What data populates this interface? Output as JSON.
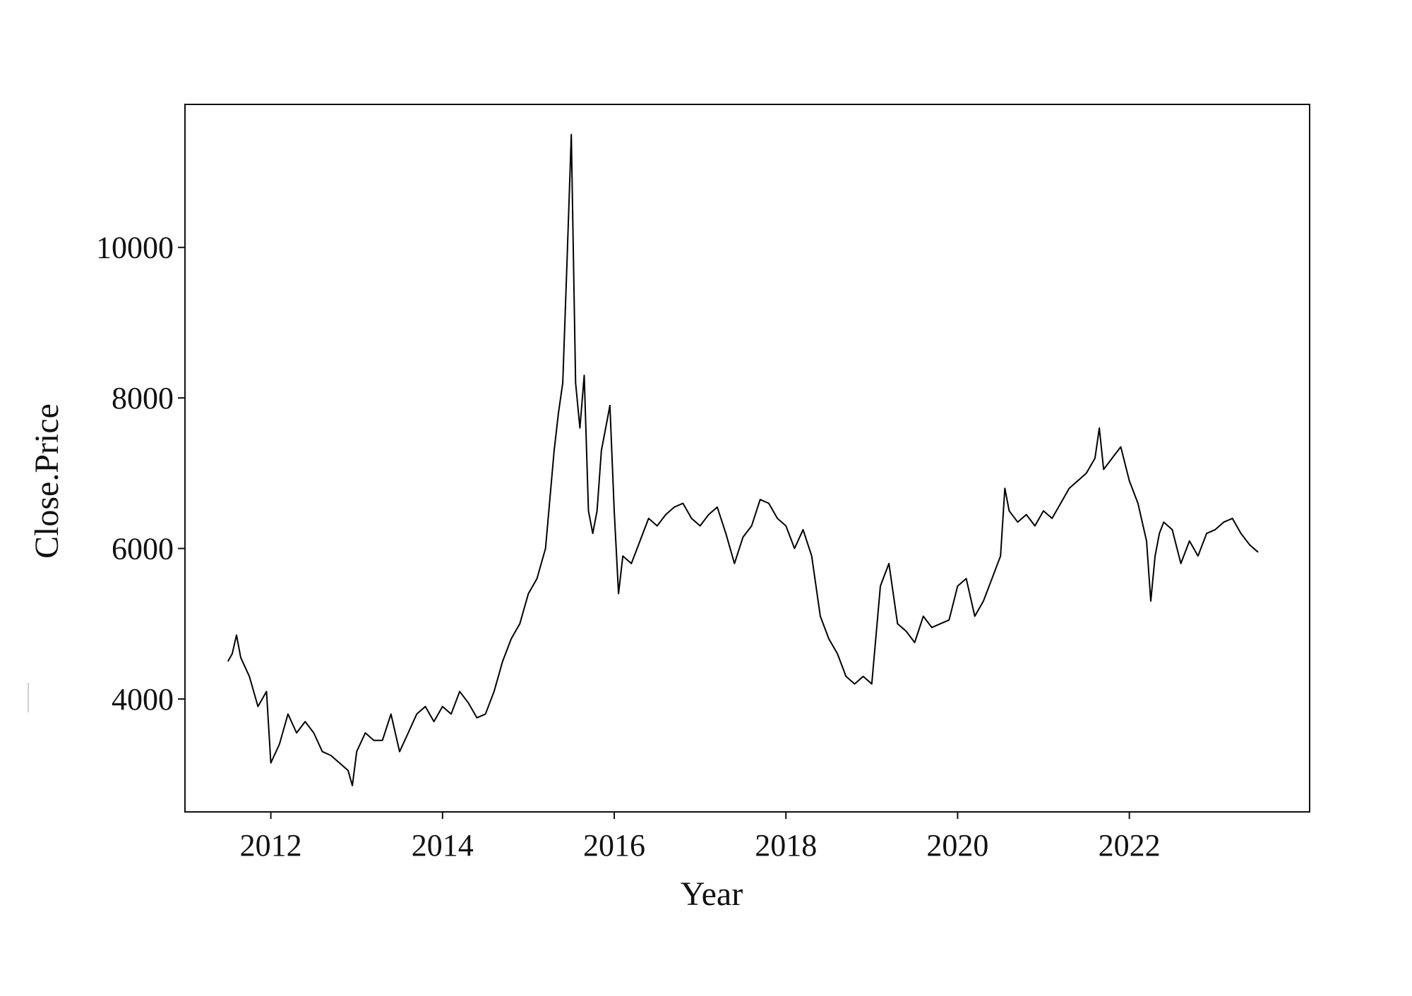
{
  "chart_data": {
    "type": "line",
    "title": "",
    "xlabel": "Year",
    "ylabel": "Close.Price",
    "xlim": [
      2011.0,
      2024.1
    ],
    "ylim": [
      2500,
      11900
    ],
    "x_ticks": [
      2012,
      2014,
      2016,
      2018,
      2020,
      2022
    ],
    "x_tick_labels": [
      "2012",
      "2014",
      "2016",
      "2018",
      "2020",
      "2022"
    ],
    "y_ticks": [
      4000,
      6000,
      8000,
      10000
    ],
    "y_tick_labels": [
      "4000",
      "6000",
      "8000",
      "10000"
    ],
    "grid": false,
    "legend": "none",
    "line_color": "#000000",
    "series": [
      {
        "x": [
          2011.5,
          2011.55,
          2011.6,
          2011.65,
          2011.75,
          2011.85,
          2011.95,
          2012.0,
          2012.1,
          2012.2,
          2012.3,
          2012.4,
          2012.5,
          2012.6,
          2012.7,
          2012.8,
          2012.9,
          2012.95,
          2013.0,
          2013.1,
          2013.2,
          2013.3,
          2013.4,
          2013.5,
          2013.6,
          2013.7,
          2013.8,
          2013.9,
          2014.0,
          2014.1,
          2014.2,
          2014.3,
          2014.4,
          2014.5,
          2014.6,
          2014.7,
          2014.8,
          2014.9,
          2015.0,
          2015.1,
          2015.2,
          2015.3,
          2015.35,
          2015.4,
          2015.45,
          2015.5,
          2015.55,
          2015.6,
          2015.65,
          2015.7,
          2015.75,
          2015.8,
          2015.85,
          2015.9,
          2015.95,
          2016.0,
          2016.05,
          2016.1,
          2016.2,
          2016.3,
          2016.4,
          2016.5,
          2016.6,
          2016.7,
          2016.8,
          2016.9,
          2017.0,
          2017.1,
          2017.2,
          2017.3,
          2017.4,
          2017.5,
          2017.6,
          2017.7,
          2017.8,
          2017.9,
          2018.0,
          2018.1,
          2018.2,
          2018.3,
          2018.4,
          2018.5,
          2018.6,
          2018.7,
          2018.8,
          2018.9,
          2019.0,
          2019.1,
          2019.2,
          2019.3,
          2019.4,
          2019.5,
          2019.6,
          2019.7,
          2019.8,
          2019.9,
          2020.0,
          2020.1,
          2020.2,
          2020.3,
          2020.4,
          2020.5,
          2020.55,
          2020.6,
          2020.7,
          2020.8,
          2020.9,
          2021.0,
          2021.1,
          2021.2,
          2021.3,
          2021.4,
          2021.5,
          2021.6,
          2021.65,
          2021.7,
          2021.8,
          2021.9,
          2022.0,
          2022.1,
          2022.2,
          2022.25,
          2022.3,
          2022.35,
          2022.4,
          2022.5,
          2022.6,
          2022.7,
          2022.8,
          2022.9,
          2023.0,
          2023.1,
          2023.2,
          2023.3,
          2023.4,
          2023.5
        ],
        "values": [
          4500,
          4600,
          4850,
          4550,
          4300,
          3900,
          4100,
          3150,
          3400,
          3800,
          3550,
          3700,
          3550,
          3300,
          3250,
          3150,
          3050,
          2850,
          3300,
          3550,
          3450,
          3450,
          3800,
          3300,
          3550,
          3800,
          3900,
          3700,
          3900,
          3800,
          4100,
          3950,
          3750,
          3800,
          4100,
          4500,
          4800,
          5000,
          5400,
          5600,
          6000,
          7300,
          7800,
          8200,
          9800,
          11500,
          8200,
          7600,
          8300,
          6500,
          6200,
          6500,
          7300,
          7600,
          7900,
          6500,
          5400,
          5900,
          5800,
          6100,
          6400,
          6300,
          6450,
          6550,
          6600,
          6400,
          6300,
          6450,
          6550,
          6200,
          5800,
          6150,
          6300,
          6650,
          6600,
          6400,
          6300,
          6000,
          6250,
          5900,
          5100,
          4800,
          4600,
          4300,
          4200,
          4300,
          4200,
          5500,
          5800,
          5000,
          4900,
          4750,
          5100,
          4950,
          5000,
          5050,
          5500,
          5600,
          5100,
          5300,
          5600,
          5900,
          6800,
          6500,
          6350,
          6450,
          6300,
          6500,
          6400,
          6600,
          6800,
          6900,
          7000,
          7200,
          7600,
          7050,
          7200,
          7350,
          6900,
          6600,
          6100,
          5300,
          5900,
          6200,
          6350,
          6250,
          5800,
          6100,
          5900,
          6200,
          6250,
          6350,
          6400,
          6200,
          6050,
          5950
        ]
      }
    ]
  }
}
